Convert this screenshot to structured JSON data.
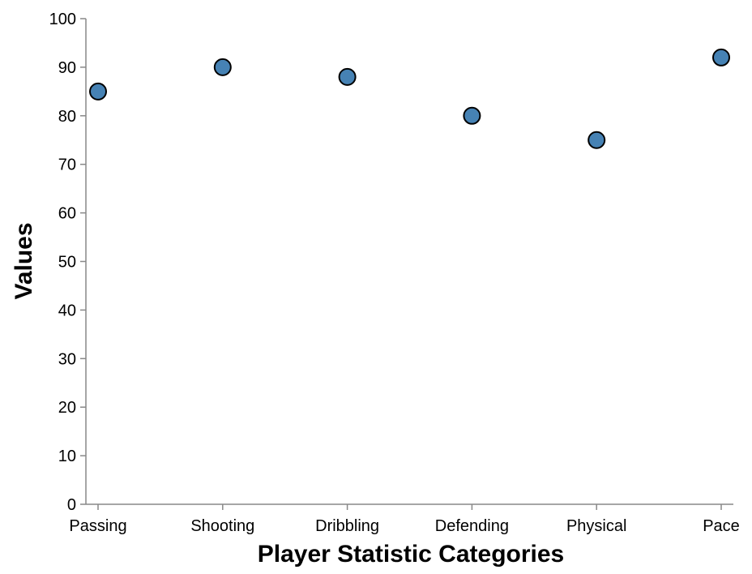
{
  "chart_data": {
    "type": "scatter",
    "title": "",
    "xlabel": "Player Statistic Categories",
    "ylabel": "Values",
    "categories": [
      "Passing",
      "Shooting",
      "Dribbling",
      "Defending",
      "Physical",
      "Pace"
    ],
    "values": [
      85,
      90,
      88,
      80,
      75,
      92
    ],
    "ylim": [
      0,
      100
    ],
    "yticks": [
      0,
      10,
      20,
      30,
      40,
      50,
      60,
      70,
      80,
      90,
      100
    ],
    "grid": false,
    "legend": "none",
    "point_color": "#4682b4",
    "point_stroke": "#000000",
    "axis_color": "#888888"
  }
}
